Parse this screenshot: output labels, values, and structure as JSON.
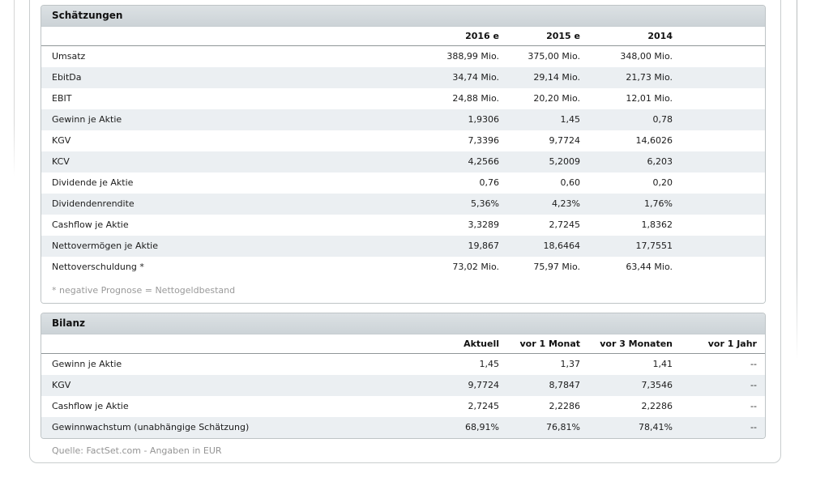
{
  "page": {
    "source_note": "Quelle: FactSet.com - Angaben in EUR"
  },
  "estimates_table": {
    "title": "Schätzungen",
    "columns": [
      "2016 e",
      "2015 e",
      "2014"
    ],
    "rows": [
      {
        "label": "Umsatz",
        "values": [
          "388,99 Mio.",
          "375,00 Mio.",
          "348,00 Mio."
        ]
      },
      {
        "label": "EbitDa",
        "values": [
          "34,74 Mio.",
          "29,14 Mio.",
          "21,73 Mio."
        ]
      },
      {
        "label": "EBIT",
        "values": [
          "24,88 Mio.",
          "20,20 Mio.",
          "12,01 Mio."
        ]
      },
      {
        "label": "Gewinn je Aktie",
        "values": [
          "1,9306",
          "1,45",
          "0,78"
        ]
      },
      {
        "label": "KGV",
        "values": [
          "7,3396",
          "9,7724",
          "14,6026"
        ]
      },
      {
        "label": "KCV",
        "values": [
          "4,2566",
          "5,2009",
          "6,203"
        ]
      },
      {
        "label": "Dividende je Aktie",
        "values": [
          "0,76",
          "0,60",
          "0,20"
        ]
      },
      {
        "label": "Dividendenrendite",
        "values": [
          "5,36%",
          "4,23%",
          "1,76%"
        ]
      },
      {
        "label": "Cashflow je Aktie",
        "values": [
          "3,3289",
          "2,7245",
          "1,8362"
        ]
      },
      {
        "label": "Nettovermögen je Aktie",
        "values": [
          "19,867",
          "18,6464",
          "17,7551"
        ]
      },
      {
        "label": "Nettoverschuldung *",
        "values": [
          "73,02 Mio.",
          "75,97 Mio.",
          "63,44 Mio."
        ]
      }
    ],
    "footnote": "* negative Prognose = Nettogeldbestand"
  },
  "balance_table": {
    "title": "Bilanz",
    "columns": [
      "Aktuell",
      "vor 1 Monat",
      "vor 3 Monaten",
      "vor 1 Jahr"
    ],
    "rows": [
      {
        "label": "Gewinn je Aktie",
        "values": [
          "1,45",
          "1,37",
          "1,41",
          "--"
        ]
      },
      {
        "label": "KGV",
        "values": [
          "9,7724",
          "8,7847",
          "7,3546",
          "--"
        ]
      },
      {
        "label": "Cashflow je Aktie",
        "values": [
          "2,7245",
          "2,2286",
          "2,2286",
          "--"
        ]
      },
      {
        "label": "Gewinnwachstum (unabhängige Schätzung)",
        "values": [
          "68,91%",
          "76,81%",
          "78,41%",
          "--"
        ]
      }
    ]
  },
  "colors": {
    "titlebar_top": "#dce1e4",
    "titlebar_bottom": "#ccd3d7",
    "zebra_stripe": "#ebeff2",
    "table_border": "#bec4c6",
    "header_underline": "#8f9698",
    "panel_border": "#c9cdce",
    "muted_text": "#9a9a9a"
  }
}
